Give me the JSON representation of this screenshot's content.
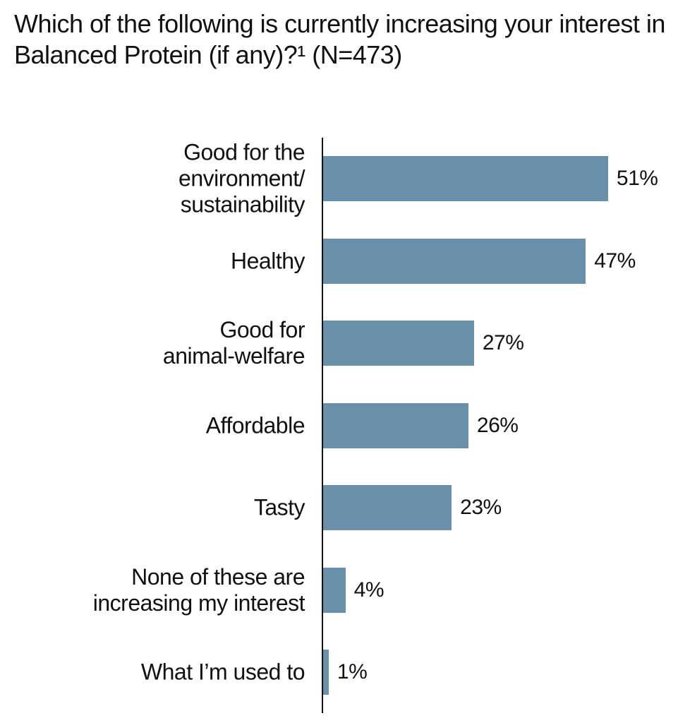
{
  "chart_data": {
    "type": "bar",
    "orientation": "horizontal",
    "title": "Which of the following is currently increasing your interest in Balanced Protein (if any)?¹ (N=473)",
    "categories": [
      "Good for the\nenvironment/\nsustainability",
      "Healthy",
      "Good for \nanimal-welfare",
      "Affordable",
      "Tasty",
      "None of these are\nincreasing my interest",
      "What I’m used to"
    ],
    "values": [
      51,
      47,
      27,
      26,
      23,
      4,
      1
    ],
    "value_labels": [
      "51%",
      "47%",
      "27%",
      "26%",
      "23%",
      "4%",
      "1%"
    ],
    "color": "#6a8fab"
  }
}
